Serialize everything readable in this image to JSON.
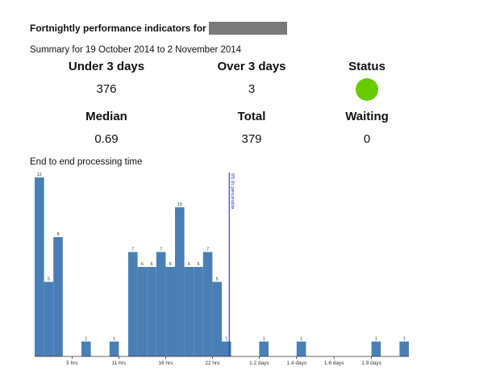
{
  "header": {
    "title": "Fortnightly performance indicators for",
    "summary": "Summary for 19 October 2014 to 2 November 2014"
  },
  "stats": {
    "under_3_days": {
      "label": "Under 3 days",
      "value": "376"
    },
    "over_3_days": {
      "label": "Over 3 days",
      "value": "3"
    },
    "status": {
      "label": "Status",
      "color": "#66cc00"
    },
    "median": {
      "label": "Median",
      "value": "0.69"
    },
    "total": {
      "label": "Total",
      "value": "379"
    },
    "waiting": {
      "label": "Waiting",
      "value": "0"
    }
  },
  "chart_data": {
    "type": "bar",
    "title": "End to end processing time",
    "bar_color": "#4a7fb5",
    "marker_color": "#3b3bd6",
    "values": [
      12,
      5,
      8,
      0,
      0,
      1,
      0,
      0,
      1,
      0,
      7,
      6,
      6,
      7,
      6,
      10,
      6,
      6,
      7,
      5,
      1,
      0,
      0,
      0,
      1,
      0,
      0,
      0,
      1,
      0,
      0,
      0,
      0,
      0,
      0,
      0,
      1,
      0,
      0,
      1
    ],
    "value_labels": [
      "12",
      "5",
      "8",
      "",
      "",
      "1",
      "",
      "",
      "1",
      "",
      "7",
      "6",
      "6",
      "7",
      "6",
      "10",
      "6",
      "6",
      "7",
      "5",
      "1",
      "",
      "",
      "",
      "1",
      "",
      "",
      "",
      "1",
      "",
      "",
      "",
      "",
      "",
      "",
      "",
      "1",
      "",
      "",
      "1"
    ],
    "tick_labels": [
      "5 hrs",
      "11 hrs",
      "16 hrs",
      "22 hrs",
      "1.2 days",
      "1.4 days",
      "1.6 days",
      "1.9 days"
    ],
    "tick_bins": [
      4,
      9,
      14,
      19,
      24,
      28,
      32,
      36
    ],
    "percentile_bin": 20.8,
    "percentile_label": "95 th percentile"
  }
}
